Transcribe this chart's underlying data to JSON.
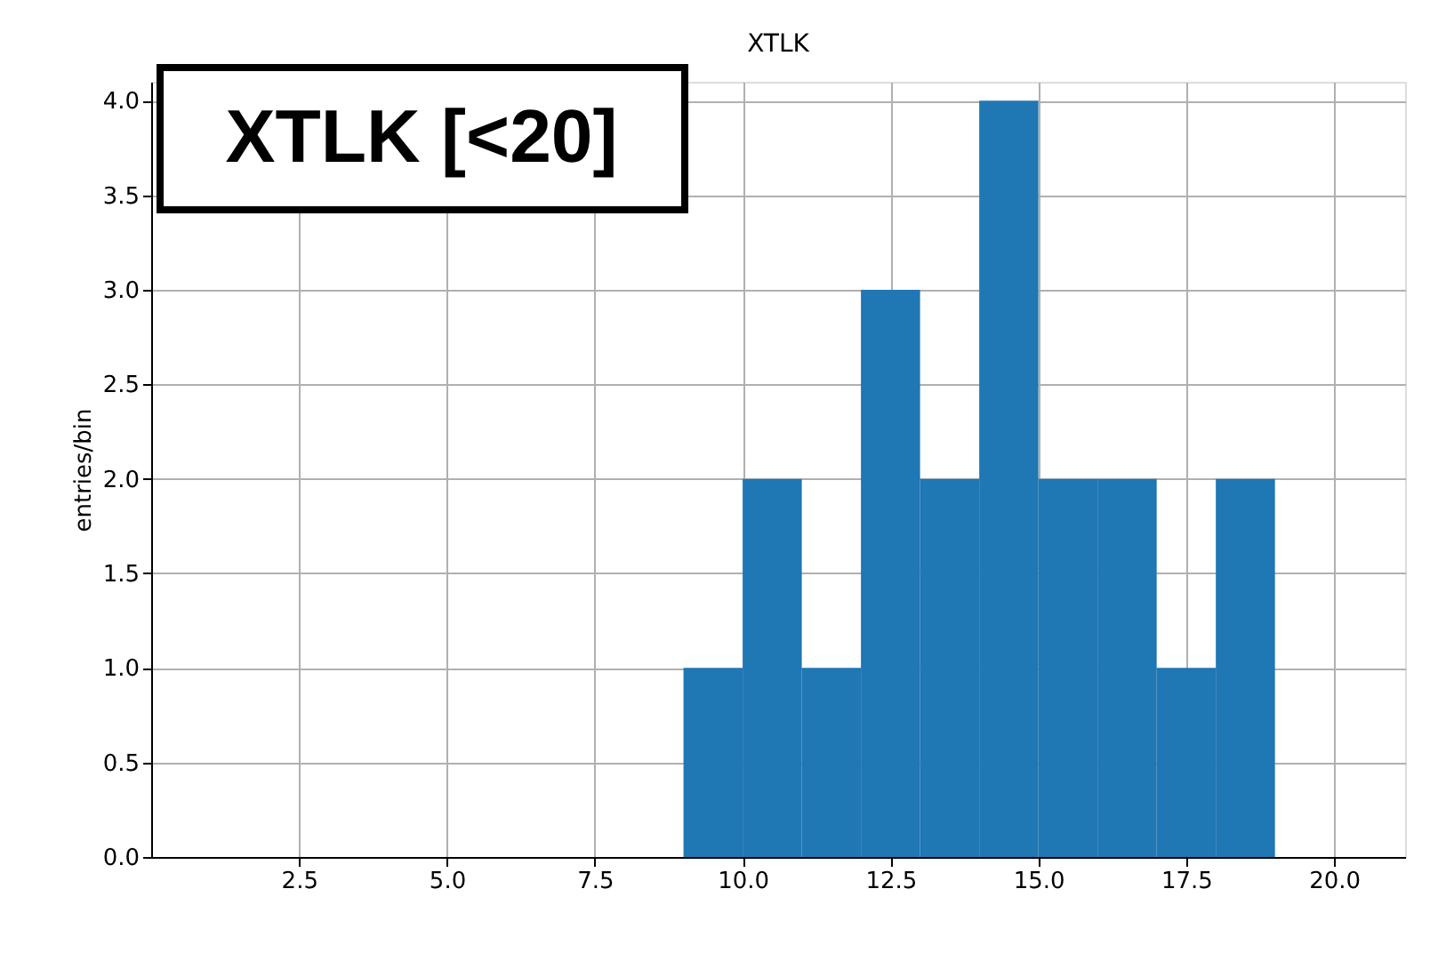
{
  "chart_data": {
    "type": "histogram",
    "title": "XTLK",
    "ylabel": "entries/bin",
    "bins": [
      9,
      10,
      11,
      12,
      13,
      14,
      15,
      16,
      17,
      18,
      19
    ],
    "values": [
      1,
      2,
      1,
      3,
      2,
      4,
      2,
      2,
      1,
      2
    ],
    "color": "#1f77b4",
    "xlim": [
      0,
      21.2
    ],
    "xticks": [
      2.5,
      {
        "value": 5,
        "label": "5.0"
      },
      7.5,
      {
        "value": 10,
        "label": "10.0"
      },
      12.5,
      {
        "value": 15,
        "label": "15.0"
      },
      17.5,
      {
        "value": 20,
        "label": "20.0"
      }
    ],
    "ylim": [
      0,
      4.1
    ],
    "yticks": [
      {
        "value": 0,
        "label": "0.0"
      },
      0.5,
      {
        "value": 1,
        "label": "1.0"
      },
      1.5,
      {
        "value": 2,
        "label": "2.0"
      },
      2.5,
      {
        "value": 3,
        "label": "3.0"
      },
      3.5,
      {
        "value": 4,
        "label": "4.0"
      }
    ],
    "grid": true,
    "annotations": [
      "XTLK [<20]"
    ]
  }
}
